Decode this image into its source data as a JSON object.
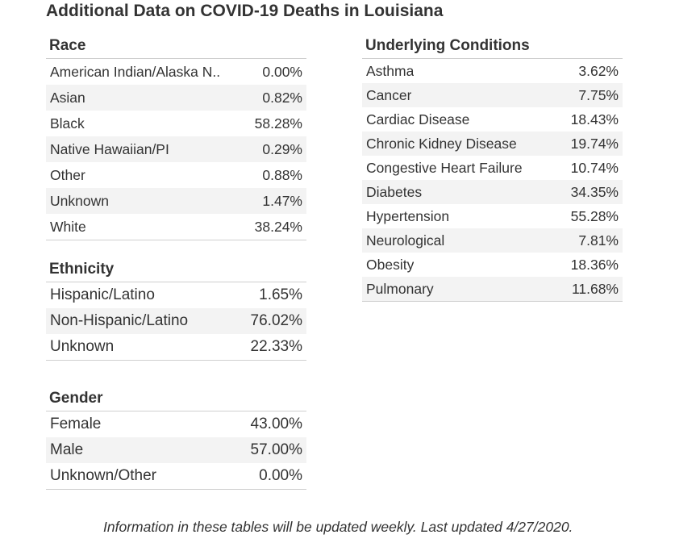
{
  "title": "Additional Data on COVID-19 Deaths in Louisiana",
  "race": {
    "title": "Race",
    "rows": [
      {
        "label": "American Indian/Alaska N..",
        "value": "0.00%"
      },
      {
        "label": "Asian",
        "value": "0.82%"
      },
      {
        "label": "Black",
        "value": "58.28%"
      },
      {
        "label": "Native Hawaiian/PI",
        "value": "0.29%"
      },
      {
        "label": "Other",
        "value": "0.88%"
      },
      {
        "label": "Unknown",
        "value": "1.47%"
      },
      {
        "label": "White",
        "value": "38.24%"
      }
    ]
  },
  "ethnicity": {
    "title": "Ethnicity",
    "rows": [
      {
        "label": "Hispanic/Latino",
        "value": "1.65%"
      },
      {
        "label": "Non-Hispanic/Latino",
        "value": "76.02%"
      },
      {
        "label": "Unknown",
        "value": "22.33%"
      }
    ]
  },
  "gender": {
    "title": "Gender",
    "rows": [
      {
        "label": "Female",
        "value": "43.00%"
      },
      {
        "label": "Male",
        "value": "57.00%"
      },
      {
        "label": "Unknown/Other",
        "value": "0.00%"
      }
    ]
  },
  "conditions": {
    "title": "Underlying Conditions",
    "rows": [
      {
        "label": "Asthma",
        "value": "3.62%"
      },
      {
        "label": "Cancer",
        "value": "7.75%"
      },
      {
        "label": "Cardiac Disease",
        "value": "18.43%"
      },
      {
        "label": "Chronic Kidney Disease",
        "value": "19.74%"
      },
      {
        "label": "Congestive Heart Failure",
        "value": "10.74%"
      },
      {
        "label": "Diabetes",
        "value": "34.35%"
      },
      {
        "label": "Hypertension",
        "value": "55.28%"
      },
      {
        "label": "Neurological",
        "value": "7.81%"
      },
      {
        "label": "Obesity",
        "value": "18.36%"
      },
      {
        "label": "Pulmonary",
        "value": "11.68%"
      }
    ]
  },
  "footnote": "Information in these tables will be updated weekly. Last updated 4/27/2020."
}
